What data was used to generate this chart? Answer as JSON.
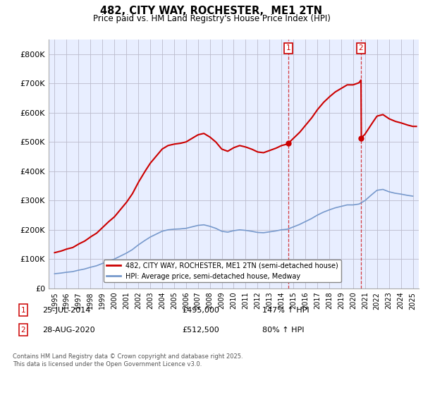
{
  "title": "482, CITY WAY, ROCHESTER,  ME1 2TN",
  "subtitle": "Price paid vs. HM Land Registry's House Price Index (HPI)",
  "ylim": [
    0,
    850000
  ],
  "yticks": [
    0,
    100000,
    200000,
    300000,
    400000,
    500000,
    600000,
    700000,
    800000
  ],
  "ytick_labels": [
    "£0",
    "£100K",
    "£200K",
    "£300K",
    "£400K",
    "£500K",
    "£600K",
    "£700K",
    "£800K"
  ],
  "xlim_start": 1994.5,
  "xlim_end": 2025.5,
  "hpi_color": "#7799cc",
  "price_color": "#cc0000",
  "marker1_date": 2014.56,
  "marker1_price": 495000,
  "marker1_label": "25-JUL-2014",
  "marker1_hpi_pct": "147% ↑ HPI",
  "marker2_date": 2020.66,
  "marker2_price": 512500,
  "marker2_label": "28-AUG-2020",
  "marker2_hpi_pct": "80% ↑ HPI",
  "legend_label1": "482, CITY WAY, ROCHESTER, ME1 2TN (semi-detached house)",
  "legend_label2": "HPI: Average price, semi-detached house, Medway",
  "footer": "Contains HM Land Registry data © Crown copyright and database right 2025.\nThis data is licensed under the Open Government Licence v3.0.",
  "background_color": "#e8eeff",
  "grid_color": "#bbbbcc",
  "years_hpi": [
    1995,
    1995.5,
    1996,
    1996.5,
    1997,
    1997.5,
    1998,
    1998.5,
    1999,
    1999.5,
    2000,
    2000.5,
    2001,
    2001.5,
    2002,
    2002.5,
    2003,
    2003.5,
    2004,
    2004.5,
    2005,
    2005.5,
    2006,
    2006.5,
    2007,
    2007.5,
    2008,
    2008.5,
    2009,
    2009.5,
    2010,
    2010.5,
    2011,
    2011.5,
    2012,
    2012.5,
    2013,
    2013.5,
    2014,
    2014.5,
    2015,
    2015.5,
    2016,
    2016.5,
    2017,
    2017.5,
    2018,
    2018.5,
    2019,
    2019.5,
    2020,
    2020.5,
    2021,
    2021.5,
    2022,
    2022.5,
    2023,
    2023.5,
    2024,
    2024.5,
    2025
  ],
  "hpi_values": [
    50000,
    52000,
    55000,
    57000,
    62000,
    66000,
    72000,
    77000,
    85000,
    93000,
    100000,
    110000,
    120000,
    132000,
    148000,
    162000,
    175000,
    185000,
    195000,
    200000,
    202000,
    203000,
    205000,
    210000,
    215000,
    217000,
    212000,
    205000,
    195000,
    192000,
    197000,
    200000,
    198000,
    195000,
    191000,
    190000,
    193000,
    196000,
    200000,
    202000,
    210000,
    218000,
    228000,
    238000,
    250000,
    260000,
    268000,
    275000,
    280000,
    285000,
    285000,
    288000,
    300000,
    318000,
    335000,
    338000,
    330000,
    325000,
    322000,
    318000,
    315000
  ]
}
